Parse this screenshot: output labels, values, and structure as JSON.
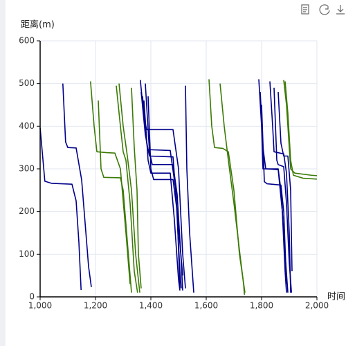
{
  "chart_data": {
    "type": "line",
    "x_label": "时间",
    "y_label": "距离(m)",
    "xlim": [
      1000,
      2000
    ],
    "xticks": [
      {
        "value": 1000,
        "label": "1,000"
      },
      {
        "value": 1200,
        "label": "1,200"
      },
      {
        "value": 1400,
        "label": "1,400"
      },
      {
        "value": 1600,
        "label": "1,600"
      },
      {
        "value": 1800,
        "label": "1,800"
      },
      {
        "value": 2000,
        "label": "2,000"
      }
    ],
    "ylim": [
      0,
      600
    ],
    "yticks": [
      0,
      100,
      200,
      300,
      400,
      500,
      600
    ],
    "grid": true,
    "series": [
      {
        "color": "#00008b",
        "x": [
          1000,
          1017,
          1042,
          1115,
          1130,
          1140,
          1148
        ],
        "values": [
          396,
          271,
          266,
          264,
          225,
          128,
          16
        ]
      },
      {
        "color": "#00008b",
        "x": [
          1082,
          1092,
          1100,
          1130,
          1150,
          1162,
          1175,
          1185
        ],
        "values": [
          500,
          363,
          350,
          349,
          274,
          177,
          71,
          23
        ]
      },
      {
        "color": "#3b7a05",
        "x": [
          1182,
          1195,
          1205,
          1240,
          1270,
          1290,
          1310,
          1325
        ],
        "values": [
          505,
          400,
          340,
          338,
          337,
          300,
          150,
          30
        ]
      },
      {
        "color": "#3b7a05",
        "x": [
          1210,
          1220,
          1230,
          1290,
          1300,
          1315,
          1330
        ],
        "values": [
          460,
          300,
          280,
          279,
          250,
          130,
          10
        ]
      },
      {
        "color": "#3b7a05",
        "x": [
          1275,
          1290,
          1300,
          1310,
          1325,
          1340,
          1352
        ],
        "values": [
          495,
          400,
          340,
          320,
          220,
          60,
          10
        ]
      },
      {
        "color": "#3b7a05",
        "x": [
          1285,
          1300,
          1315,
          1330,
          1345,
          1360
        ],
        "values": [
          500,
          400,
          330,
          250,
          100,
          10
        ]
      },
      {
        "color": "#3b7a05",
        "x": [
          1330,
          1340,
          1350,
          1355,
          1365
        ],
        "values": [
          490,
          350,
          250,
          100,
          20
        ]
      },
      {
        "color": "#00008b",
        "x": [
          1362,
          1375,
          1385,
          1480,
          1500,
          1515,
          1525
        ],
        "values": [
          508,
          420,
          392,
          392,
          300,
          100,
          20
        ]
      },
      {
        "color": "#00008b",
        "x": [
          1365,
          1380,
          1390,
          1470,
          1490,
          1505,
          1510
        ],
        "values": [
          480,
          380,
          345,
          343,
          250,
          60,
          20
        ]
      },
      {
        "color": "#00008b",
        "x": [
          1370,
          1385,
          1395,
          1480,
          1495,
          1505
        ],
        "values": [
          470,
          360,
          330,
          328,
          200,
          20
        ]
      },
      {
        "color": "#00008b",
        "x": [
          1380,
          1395,
          1405,
          1480,
          1495,
          1510,
          1515
        ],
        "values": [
          500,
          340,
          310,
          310,
          240,
          80,
          15
        ]
      },
      {
        "color": "#00008b",
        "x": [
          1375,
          1390,
          1400,
          1470,
          1485,
          1500,
          1505
        ],
        "values": [
          460,
          320,
          290,
          290,
          180,
          40,
          15
        ]
      },
      {
        "color": "#00008b",
        "x": [
          1390,
          1400,
          1410,
          1480,
          1495,
          1515
        ],
        "values": [
          470,
          300,
          275,
          275,
          200,
          50
        ]
      },
      {
        "color": "#00008b",
        "x": [
          1525,
          1530,
          1540,
          1555
        ],
        "values": [
          495,
          300,
          150,
          10
        ]
      },
      {
        "color": "#3b7a05",
        "x": [
          1610,
          1620,
          1630,
          1660,
          1680,
          1700,
          1720,
          1740
        ],
        "values": [
          510,
          400,
          350,
          348,
          340,
          250,
          100,
          10
        ]
      },
      {
        "color": "#3b7a05",
        "x": [
          1650,
          1665,
          1680,
          1700,
          1720,
          1735,
          1738
        ],
        "values": [
          500,
          400,
          320,
          220,
          110,
          30,
          5
        ]
      },
      {
        "color": "#00008b",
        "x": [
          1790,
          1800,
          1805,
          1860,
          1870,
          1885,
          1895
        ],
        "values": [
          510,
          400,
          300,
          300,
          250,
          100,
          10
        ]
      },
      {
        "color": "#00008b",
        "x": [
          1795,
          1805,
          1815,
          1860,
          1875,
          1885,
          1890
        ],
        "values": [
          480,
          350,
          300,
          298,
          200,
          60,
          10
        ]
      },
      {
        "color": "#00008b",
        "x": [
          1800,
          1810,
          1820,
          1870,
          1880,
          1890
        ],
        "values": [
          450,
          270,
          265,
          262,
          200,
          30
        ]
      },
      {
        "color": "#00008b",
        "x": [
          1830,
          1840,
          1845,
          1880,
          1890,
          1900,
          1905
        ],
        "values": [
          505,
          400,
          340,
          335,
          290,
          150,
          10
        ]
      },
      {
        "color": "#00008b",
        "x": [
          1845,
          1855,
          1860,
          1880,
          1890,
          1900,
          1908
        ],
        "values": [
          490,
          320,
          310,
          305,
          220,
          80,
          10
        ]
      },
      {
        "color": "#00008b",
        "x": [
          1860,
          1870,
          1880,
          1895,
          1905,
          1910
        ],
        "values": [
          480,
          360,
          330,
          330,
          250,
          60
        ]
      },
      {
        "color": "#3b7a05",
        "x": [
          1880,
          1890,
          1900,
          1905,
          1920,
          1980,
          2000
        ],
        "values": [
          508,
          450,
          350,
          300,
          290,
          285,
          284
        ]
      },
      {
        "color": "#3b7a05",
        "x": [
          1885,
          1895,
          1905,
          1915,
          1950,
          2000
        ],
        "values": [
          505,
          430,
          320,
          285,
          278,
          276
        ]
      }
    ]
  }
}
